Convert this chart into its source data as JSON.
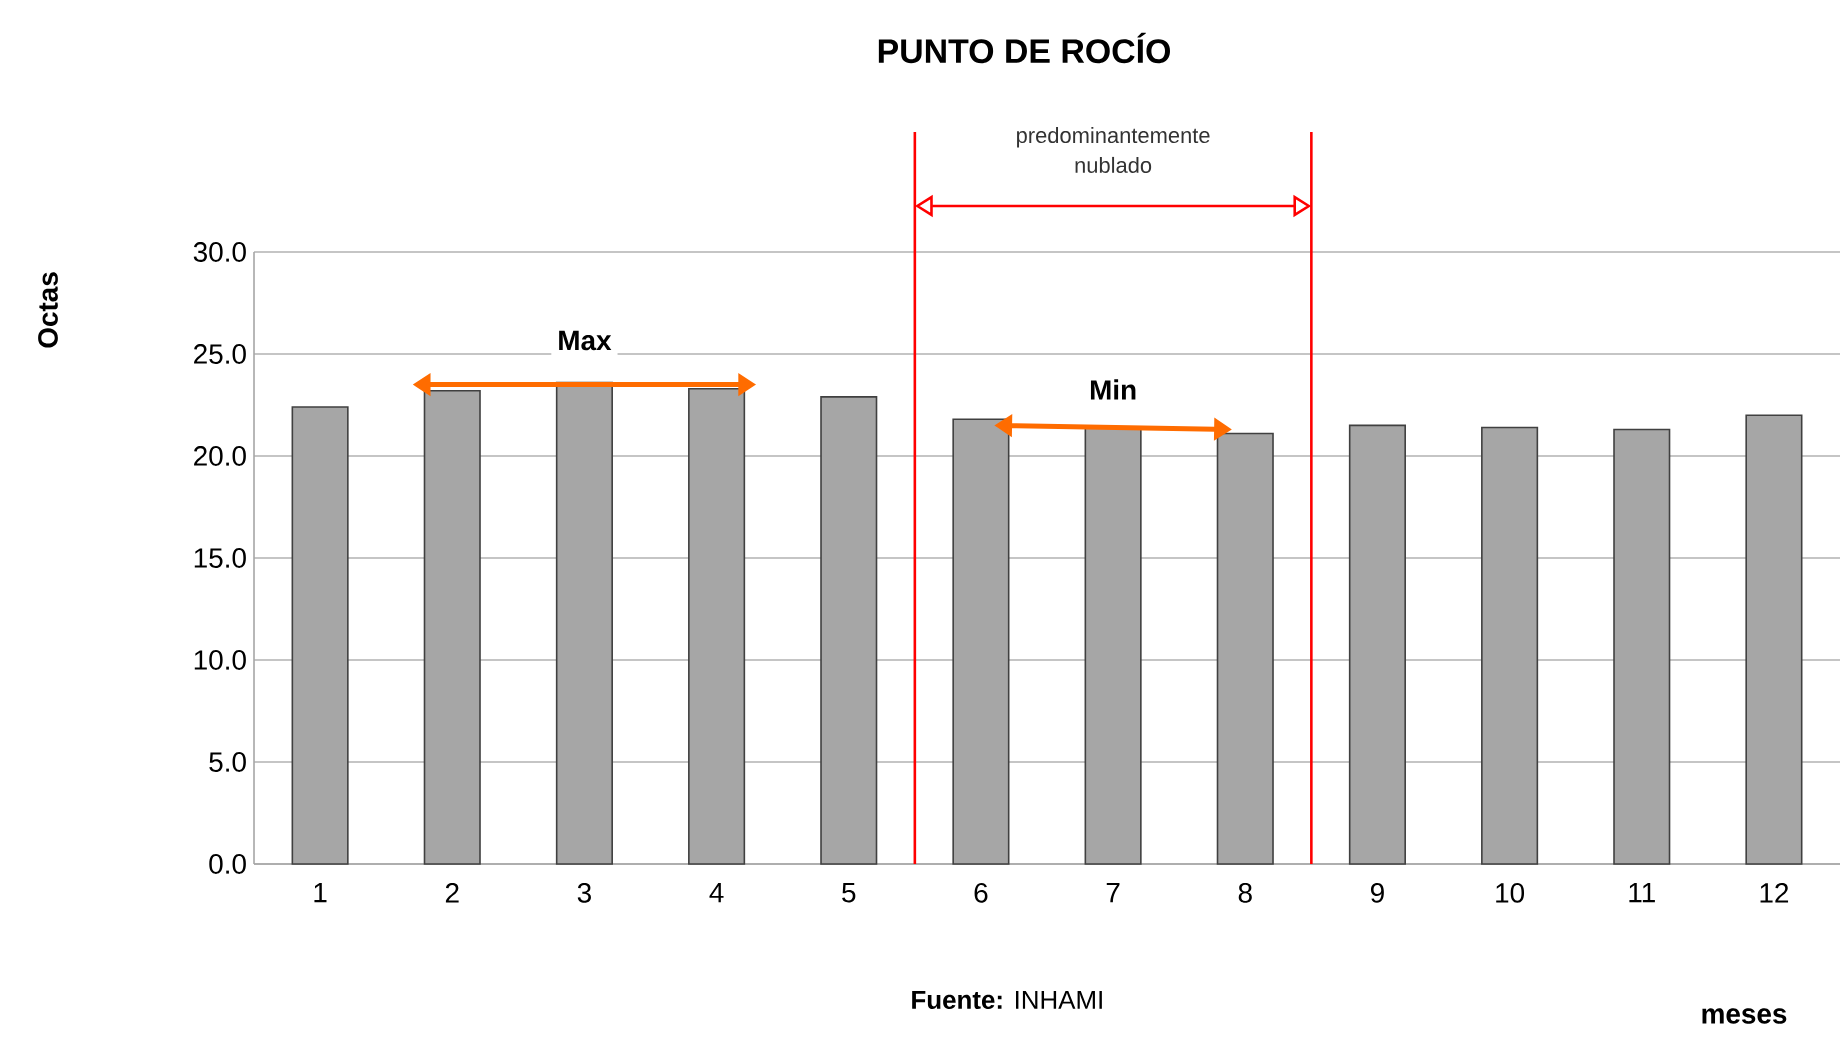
{
  "chart_data": {
    "type": "bar",
    "title": "PUNTO DE ROCÍO",
    "xlabel": "meses",
    "ylabel": "Octas",
    "x": [
      1,
      2,
      3,
      4,
      5,
      6,
      7,
      8,
      9,
      10,
      11,
      12
    ],
    "values": [
      22.4,
      23.2,
      23.6,
      23.3,
      22.9,
      21.8,
      21.4,
      21.1,
      21.5,
      21.4,
      21.3,
      22.0
    ],
    "color": "#a6a6a6",
    "xlim": [
      0.5,
      12.5
    ],
    "xticks": [
      1,
      2,
      3,
      4,
      5,
      6,
      7,
      8,
      9,
      10,
      11,
      12
    ],
    "ylim": [
      0,
      30
    ],
    "yticks": [
      {
        "value": 0,
        "label": "0.0"
      },
      {
        "value": 5,
        "label": "5.0"
      },
      {
        "value": 10,
        "label": "10.0"
      },
      {
        "value": 15,
        "label": "15.0"
      },
      {
        "value": 20,
        "label": "20.0"
      },
      {
        "value": 25,
        "label": "25.0"
      },
      {
        "value": 30,
        "label": "30.0"
      }
    ],
    "grid": "y",
    "ref_lines": [
      {
        "axis": "x",
        "value": 5.5,
        "color": "#ff0000"
      },
      {
        "axis": "x",
        "value": 8.5,
        "color": "#ff0000"
      }
    ],
    "annotations": [
      "predominantemente nublado",
      {
        "text": "Max",
        "x": 3,
        "y": 23.5
      },
      "Min",
      "**Fuente:** INHAMI"
    ]
  }
}
